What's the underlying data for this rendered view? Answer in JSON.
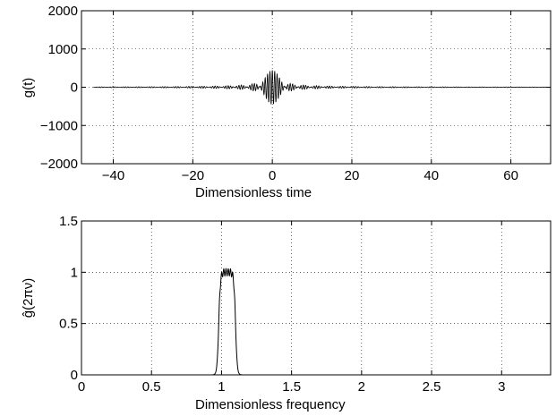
{
  "chart_data": [
    {
      "type": "line",
      "id": "top",
      "xlabel": "Dimensionless time",
      "ylabel": "g(t)",
      "xlim": [
        -48,
        70
      ],
      "ylim": [
        -2000,
        2000
      ],
      "grid": true,
      "x_ticks": [
        -40,
        -20,
        0,
        20,
        40,
        60
      ],
      "x_tick_labels": [
        "−40",
        "−20",
        "0",
        "20",
        "40",
        "60"
      ],
      "y_ticks": [
        -2000,
        -1000,
        0,
        1000,
        2000
      ],
      "y_tick_labels": [
        "−2000",
        "−1000",
        "0",
        "1000",
        "2000"
      ],
      "series": [
        {
          "signal": "modulated oscillation",
          "x_range": [
            -45,
            69
          ],
          "envelope_peak": 450,
          "envelope_center": 0,
          "carrier_period": 0.6,
          "sidelobe_period": 9.5,
          "color": "#000000"
        }
      ]
    },
    {
      "type": "line",
      "id": "bottom",
      "xlabel": "Dimensionless frequency",
      "ylabel": "ĝ(2πν)",
      "xlim": [
        0,
        3.35
      ],
      "ylim": [
        0,
        1.5
      ],
      "grid": true,
      "x_ticks": [
        0,
        0.5,
        1,
        1.5,
        2,
        2.5,
        3
      ],
      "x_tick_labels": [
        "0",
        "0.5",
        "1",
        "1.5",
        "2",
        "2.5",
        "3"
      ],
      "y_ticks": [
        0,
        0.5,
        1,
        1.5
      ],
      "y_tick_labels": [
        "0",
        "0.5",
        "1",
        "1.5"
      ],
      "series": [
        {
          "signal": "band-pass spectrum",
          "band": [
            0.98,
            1.1
          ],
          "level": 1.0,
          "ripple": 0.05,
          "color": "#000000"
        }
      ]
    }
  ]
}
